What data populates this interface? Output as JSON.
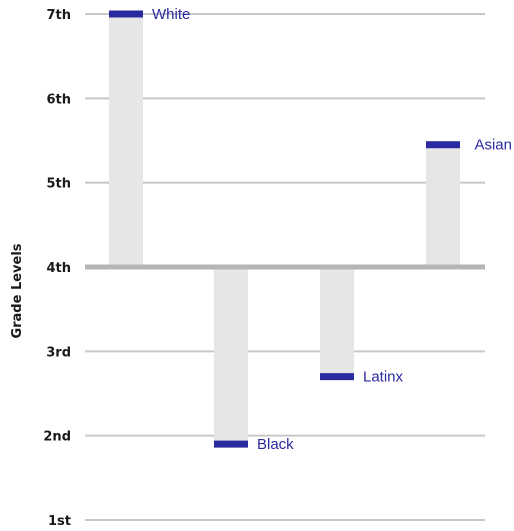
{
  "chart_data": {
    "type": "bar",
    "title": "",
    "xlabel": "",
    "ylabel": "Grade Levels",
    "baseline": 4,
    "ylim": [
      1,
      7
    ],
    "yticks": [
      {
        "value": 1,
        "label": "1st"
      },
      {
        "value": 2,
        "label": "2nd"
      },
      {
        "value": 3,
        "label": "3rd"
      },
      {
        "value": 4,
        "label": "4th"
      },
      {
        "value": 5,
        "label": "5th"
      },
      {
        "value": 6,
        "label": "6th"
      },
      {
        "value": 7,
        "label": "7th"
      }
    ],
    "categories": [
      "White",
      "Black",
      "Latinx",
      "Asian"
    ],
    "values": [
      7.0,
      1.9,
      2.7,
      5.45
    ],
    "grid": true,
    "legend": "none",
    "colors": {
      "bar": "#e6e6e6",
      "marker": "#2a2aa0",
      "label": "#2a2aa0",
      "grid": "#c8c8c8",
      "baseline": "#b5b5b5",
      "text": "#1a1a1a"
    }
  }
}
